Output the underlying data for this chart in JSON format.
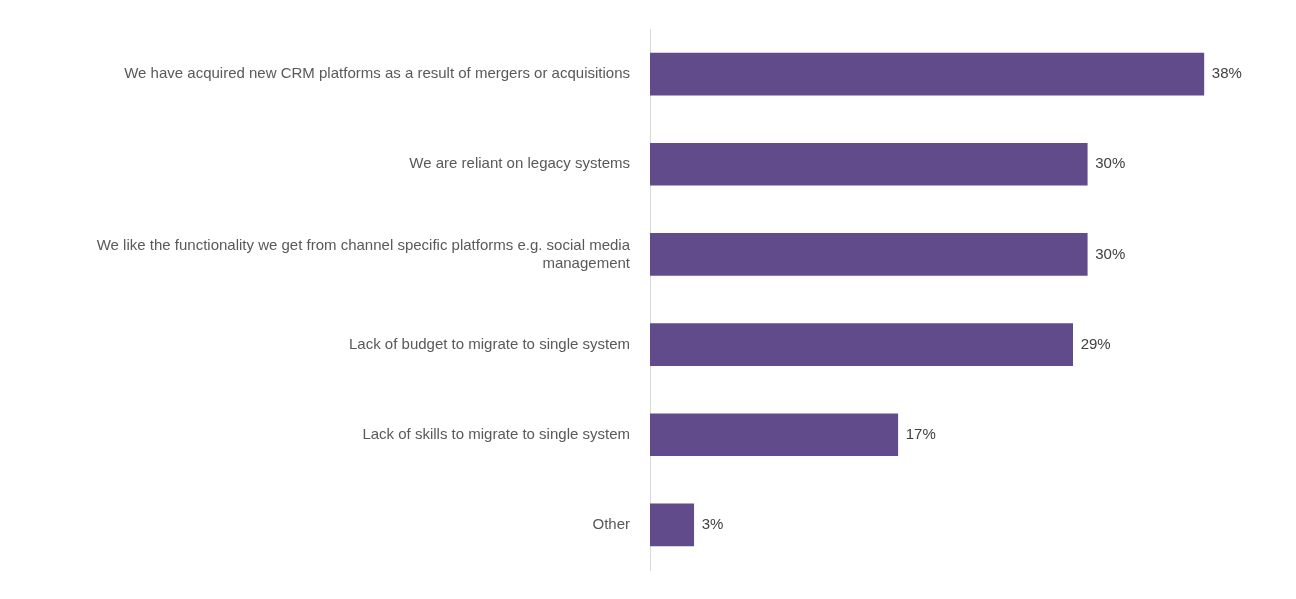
{
  "chart_data": {
    "type": "bar",
    "orientation": "horizontal",
    "categories": [
      "We have acquired new CRM platforms as a result of mergers or acquisitions",
      "We are reliant on legacy systems",
      "We like the functionality we get from channel specific platforms e.g. social media management",
      "Lack of budget to migrate to single system",
      "Lack of skills to migrate to single system",
      "Other"
    ],
    "values": [
      38,
      30,
      30,
      29,
      17,
      3
    ],
    "value_labels": [
      "38%",
      "30%",
      "30%",
      "29%",
      "17%",
      "3%"
    ],
    "color": "#614b8a",
    "tick_labels": "y",
    "grid": false,
    "legend": false
  }
}
